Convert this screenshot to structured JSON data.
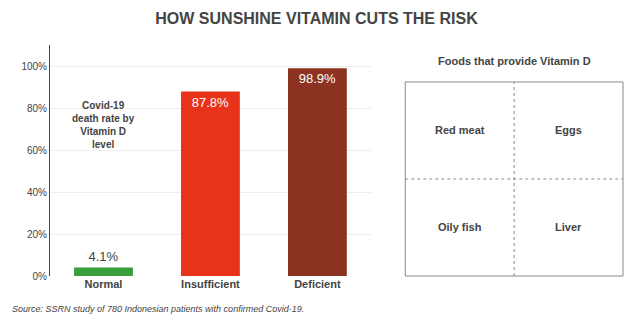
{
  "chart_data": {
    "type": "bar",
    "title": "HOW SUNSHINE VITAMIN CUTS THE RISK",
    "categories": [
      "Normal",
      "Insufficient",
      "Deficient"
    ],
    "values": [
      4.1,
      87.8,
      98.9
    ],
    "value_labels": [
      "4.1%",
      "87.8%",
      "98.9%"
    ],
    "data_labels": true,
    "colors": [
      "#3a9e3a",
      "#e8321a",
      "#8b3320"
    ],
    "ylim": [
      0,
      110
    ],
    "yticks": [
      {
        "value": 0,
        "label": "0%"
      },
      {
        "value": 20,
        "label": "20%"
      },
      {
        "value": 40,
        "label": "40%"
      },
      {
        "value": 60,
        "label": "60%"
      },
      {
        "value": 80,
        "label": "80%"
      },
      {
        "value": 100,
        "label": "100%"
      }
    ],
    "grid": true,
    "annotations": [
      "Covid-19\ndeath rate by\nVitamin D\nlevel",
      "Source: SSRN study of 780 Indonesian patients with confirmed Covid-19.",
      "Foods that provide Vitamin D",
      "Red meat",
      "Eggs",
      "Oily fish",
      "Liver"
    ]
  }
}
